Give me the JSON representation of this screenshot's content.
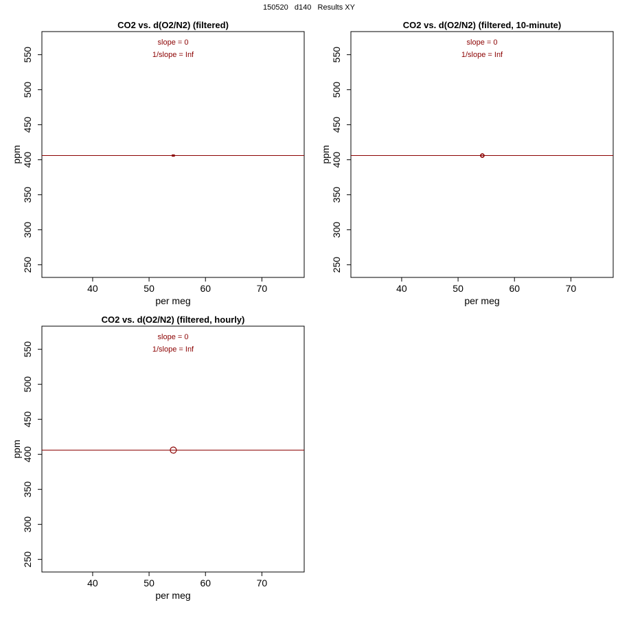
{
  "figure_title": "150520   d140   Results XY",
  "colors": {
    "fit_line": "#8b0000",
    "annotation": "#8b0000",
    "point": "#8b0000",
    "axis": "#000000"
  },
  "chart_data": [
    {
      "type": "scatter",
      "title": "CO2 vs. d(O2/N2) (filtered)",
      "xlabel": "per meg",
      "ylabel": "ppm",
      "xlim": [
        31,
        77.5
      ],
      "ylim": [
        232,
        583
      ],
      "x_ticks": [
        40,
        50,
        60,
        70
      ],
      "y_ticks": [
        250,
        300,
        350,
        400,
        450,
        500,
        550
      ],
      "grid": false,
      "points": [
        {
          "x": 54.3,
          "y": 406
        }
      ],
      "marker": "small-square",
      "fit_line": {
        "slope": 0,
        "intercept": 406
      },
      "annotations": [
        "slope = 0",
        "1/slope = Inf"
      ]
    },
    {
      "type": "scatter",
      "title": "CO2 vs. d(O2/N2) (filtered, 10-minute)",
      "xlabel": "per meg",
      "ylabel": "ppm",
      "xlim": [
        31,
        77.5
      ],
      "ylim": [
        232,
        583
      ],
      "x_ticks": [
        40,
        50,
        60,
        70
      ],
      "y_ticks": [
        250,
        300,
        350,
        400,
        450,
        500,
        550
      ],
      "grid": false,
      "points": [
        {
          "x": 54.3,
          "y": 406
        }
      ],
      "marker": "small-circle",
      "fit_line": {
        "slope": 0,
        "intercept": 406
      },
      "annotations": [
        "slope = 0",
        "1/slope = Inf"
      ]
    },
    {
      "type": "scatter",
      "title": "CO2 vs. d(O2/N2) (filtered, hourly)",
      "xlabel": "per meg",
      "ylabel": "ppm",
      "xlim": [
        31,
        77.5
      ],
      "ylim": [
        232,
        583
      ],
      "x_ticks": [
        40,
        50,
        60,
        70
      ],
      "y_ticks": [
        250,
        300,
        350,
        400,
        450,
        500,
        550
      ],
      "grid": false,
      "points": [
        {
          "x": 54.3,
          "y": 406
        }
      ],
      "marker": "large-circle",
      "fit_line": {
        "slope": 0,
        "intercept": 406
      },
      "annotations": [
        "slope = 0",
        "1/slope = Inf"
      ]
    }
  ]
}
